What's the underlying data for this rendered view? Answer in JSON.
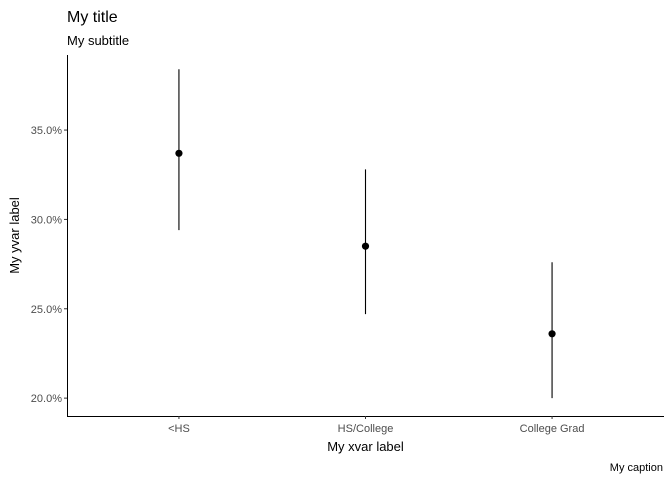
{
  "chart_data": {
    "type": "pointrange",
    "title": "My title",
    "subtitle": "My subtitle",
    "xlabel": "My xvar label",
    "ylabel": "My yvar label",
    "caption": "My caption",
    "categories": [
      "<HS",
      "HS/College",
      "College Grad"
    ],
    "values": [
      0.337,
      0.285,
      0.236
    ],
    "lower": [
      0.294,
      0.247,
      0.2
    ],
    "upper": [
      0.384,
      0.328,
      0.276
    ],
    "ylim": [
      0.19,
      0.392
    ],
    "yticks": [
      0.2,
      0.25,
      0.3,
      0.35
    ],
    "ytick_labels": [
      "20.0%",
      "25.0%",
      "30.0%",
      "35.0%"
    ],
    "grid": false,
    "color": "#000000"
  }
}
